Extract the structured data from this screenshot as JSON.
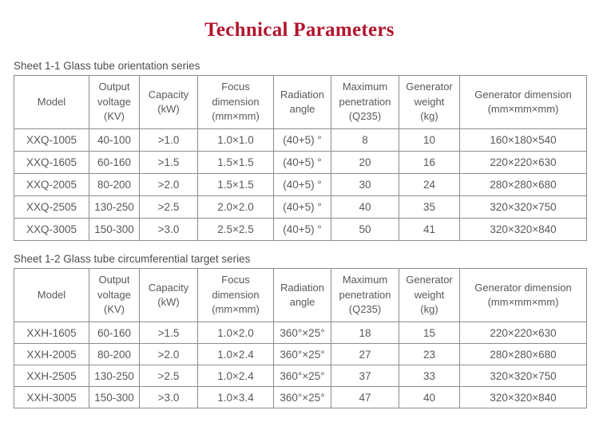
{
  "page": {
    "title": "Technical Parameters"
  },
  "colors": {
    "title_red": "#b3152e",
    "table_border": "#8c8c8c",
    "text_gray": "#58595b"
  },
  "sheets": [
    {
      "caption": "Sheet 1-1 Glass tube orientation series",
      "headers": [
        "Model",
        "Output\nvoltage\n(KV)",
        "Capacity\n(kW)",
        "Focus\ndimension\n(mm×mm)",
        "Radiation\nangle",
        "Maximum\npenetration\n(Q235)",
        "Generator\nweight\n(kg)",
        "Generator dimension\n(mm×mm×mm)"
      ],
      "rows": [
        [
          "XXQ-1005",
          "40-100",
          ">1.0",
          "1.0×1.0",
          "(40+5) °",
          "8",
          "10",
          "160×180×540"
        ],
        [
          "XXQ-1605",
          "60-160",
          ">1.5",
          "1.5×1.5",
          "(40+5) °",
          "20",
          "16",
          "220×220×630"
        ],
        [
          "XXQ-2005",
          "80-200",
          ">2.0",
          "1.5×1.5",
          "(40+5) °",
          "30",
          "24",
          "280×280×680"
        ],
        [
          "XXQ-2505",
          "130-250",
          ">2.5",
          "2.0×2.0",
          "(40+5) °",
          "40",
          "35",
          "320×320×750"
        ],
        [
          "XXQ-3005",
          "150-300",
          ">3.0",
          "2.5×2.5",
          "(40+5) °",
          "50",
          "41",
          "320×320×840"
        ]
      ]
    },
    {
      "caption": "Sheet 1-2 Glass tube circumferential target series",
      "headers": [
        "Model",
        "Output\nvoltage\n(KV)",
        "Capacity\n(kW)",
        "Focus\ndimension\n(mm×mm)",
        "Radiation\nangle",
        "Maximum\npenetration\n(Q235)",
        "Generator\nweight\n(kg)",
        "Generator dimension\n(mm×mm×mm)"
      ],
      "rows": [
        [
          "XXH-1605",
          "60-160",
          ">1.5",
          "1.0×2.0",
          "360°×25°",
          "18",
          "15",
          "220×220×630"
        ],
        [
          "XXH-2005",
          "80-200",
          ">2.0",
          "1.0×2.4",
          "360°×25°",
          "27",
          "23",
          "280×280×680"
        ],
        [
          "XXH-2505",
          "130-250",
          ">2.5",
          "1.0×2.4",
          "360°×25°",
          "37",
          "33",
          "320×320×750"
        ],
        [
          "XXH-3005",
          "150-300",
          ">3.0",
          "1.0×3.4",
          "360°×25°",
          "47",
          "40",
          "320×320×840"
        ]
      ]
    }
  ]
}
